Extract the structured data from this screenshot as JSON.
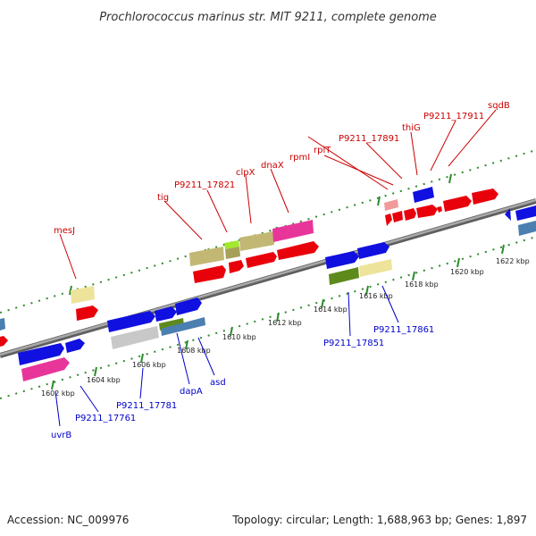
{
  "title": "Prochlorococcus marinus str. MIT 9211, complete genome",
  "footer": {
    "accession": "Accession: NC_009976",
    "stats": "Topology: circular; Length: 1,688,963 bp; Genes: 1,897"
  },
  "scale_labels": [
    "1602 kbp",
    "1604 kbp",
    "1606 kbp",
    "1608 kbp",
    "1610 kbp",
    "1612 kbp",
    "1614 kbp",
    "1616 kbp",
    "1618 kbp",
    "1620 kbp",
    "1622 kbp"
  ],
  "upper_strand_labels": [
    "mesJ",
    "tig",
    "P9211_17821",
    "clpX",
    "dnaX",
    "rpmI",
    "rplT",
    "P9211_17891",
    "thiG",
    "P9211_17911",
    "sqdB"
  ],
  "lower_strand_labels": [
    "uvrB",
    "P9211_17761",
    "P9211_17781",
    "dapA",
    "asd",
    "P9211_17851",
    "P9211_17861"
  ],
  "colors": {
    "backbone": "#888888",
    "ruler": "#2e8b2e",
    "upper_label": "#cc0000",
    "lower_label": "#0000cc",
    "feature_red": "#e8000b",
    "feature_blue": "#1010e0",
    "feature_khaki": "#c2b874",
    "feature_pink": "#e8359a",
    "feature_cream": "#eee39a",
    "feature_steel": "#4a7fb0",
    "feature_olive": "#5e8a1c",
    "feature_lime": "#a4e82c",
    "feature_gray": "#c8c8c8"
  }
}
